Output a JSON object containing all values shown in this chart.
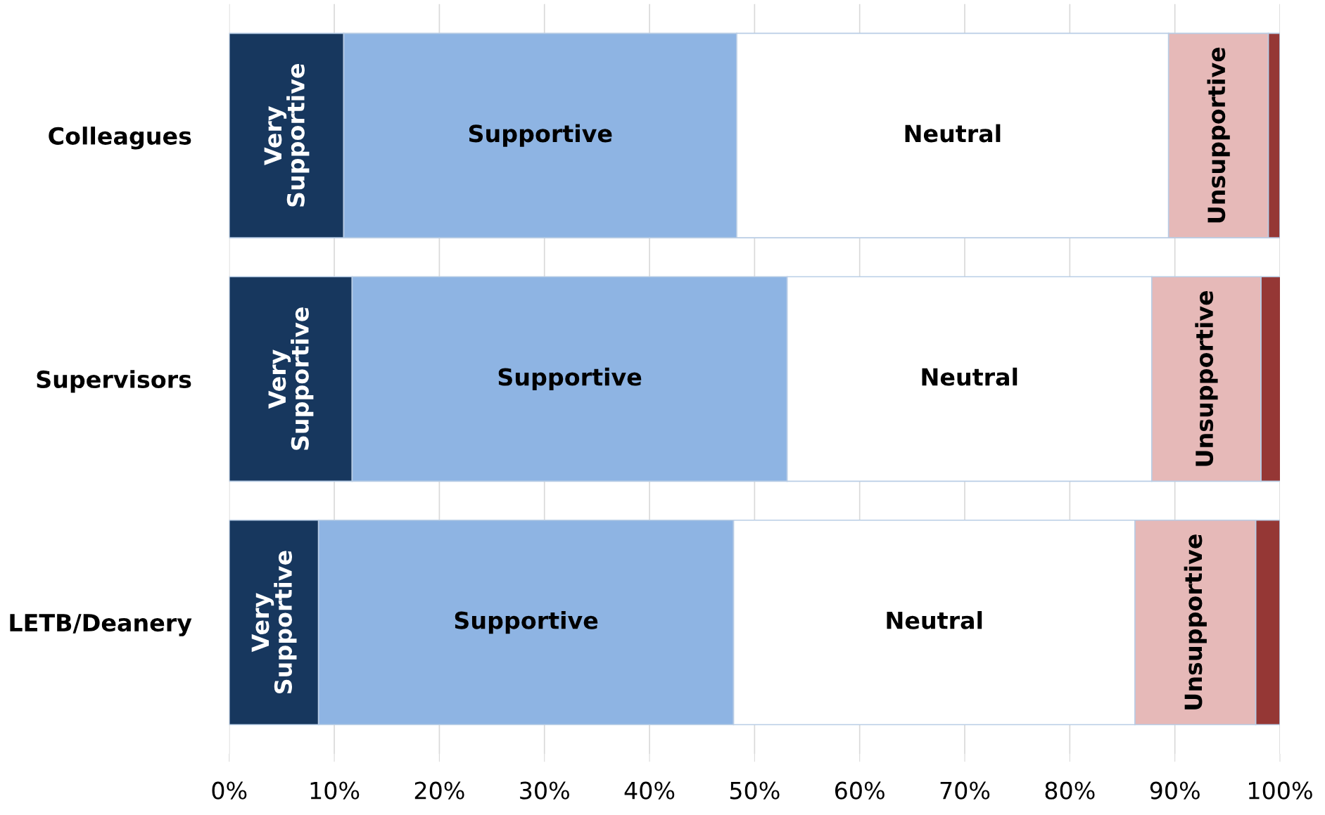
{
  "chart_data": {
    "type": "bar",
    "orientation": "horizontal",
    "stacked": true,
    "categories": [
      "Colleagues",
      "Supervisors",
      "LETB/Deanery"
    ],
    "series": [
      {
        "name": "Very Supportive",
        "color": "#17375e",
        "values": [
          10.9,
          11.7,
          8.5
        ]
      },
      {
        "name": "Supportive",
        "color": "#8eb4e3",
        "values": [
          37.4,
          41.4,
          39.5
        ]
      },
      {
        "name": "Neutral",
        "color": "#ffffff",
        "values": [
          41.1,
          34.7,
          38.2
        ]
      },
      {
        "name": "Unsupportive",
        "color": "#e6b9b8",
        "values": [
          9.5,
          10.4,
          11.5
        ]
      },
      {
        "color": "#953735",
        "values": [
          1.1,
          1.9,
          2.3
        ]
      }
    ],
    "xlim": [
      0,
      100
    ],
    "xticks": [
      {
        "value": 0,
        "label": "0%"
      },
      {
        "value": 10,
        "label": "10%"
      },
      {
        "value": 20,
        "label": "20%"
      },
      {
        "value": 30,
        "label": "30%"
      },
      {
        "value": 40,
        "label": "40%"
      },
      {
        "value": 50,
        "label": "50%"
      },
      {
        "value": 60,
        "label": "60%"
      },
      {
        "value": 70,
        "label": "70%"
      },
      {
        "value": 80,
        "label": "80%"
      },
      {
        "value": 90,
        "label": "90%"
      },
      {
        "value": 100,
        "label": "100%"
      }
    ],
    "grid": "x",
    "legend": false
  }
}
